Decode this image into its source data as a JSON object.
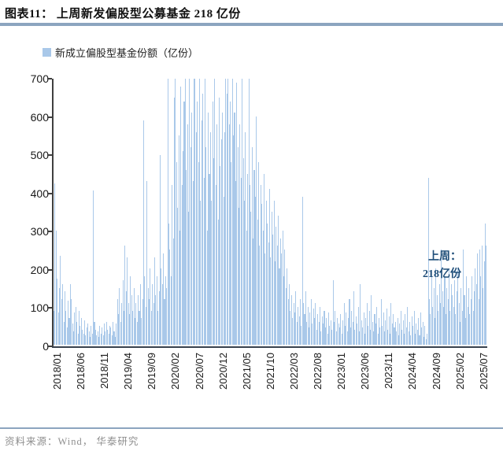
{
  "title": "图表11：  上周新发偏股型公募基金 218 亿份",
  "legend": {
    "label": "新成立偏股型基金份额（亿份）"
  },
  "annotation": {
    "line1": "上周：",
    "line2": "218亿份"
  },
  "footer": {
    "source": "资料来源：Wind， 华泰研究"
  },
  "colors": {
    "bar": "#A9C8E9",
    "rule": "#8CA5BF",
    "annotation": "#1F4E79",
    "axis": "#3f3f3f"
  },
  "chart_data": {
    "type": "bar",
    "title": "上周新发偏股型公募基金 218 亿份",
    "series_name": "新成立偏股型基金份额（亿份）",
    "frequency": "weekly",
    "x_start": "2018/01",
    "x_end": "2025/08",
    "x_tick_labels": [
      "2018/01",
      "2018/06",
      "2018/11",
      "2019/04",
      "2019/09",
      "2020/02",
      "2020/07",
      "2020/12",
      "2021/05",
      "2021/10",
      "2022/03",
      "2022/08",
      "2023/01",
      "2023/06",
      "2023/11",
      "2024/04",
      "2024/09",
      "2025/02",
      "2025/07"
    ],
    "y_ticks": [
      0,
      100,
      200,
      300,
      400,
      500,
      600,
      700
    ],
    "ylim": [
      0,
      700
    ],
    "ylabel": "",
    "grid": false,
    "legend_position": "top-left",
    "last_week_value": 218,
    "values": [
      90,
      425,
      300,
      175,
      85,
      150,
      235,
      120,
      160,
      60,
      140,
      90,
      45,
      115,
      70,
      160,
      120,
      55,
      35,
      85,
      100,
      60,
      30,
      90,
      50,
      70,
      40,
      30,
      65,
      25,
      45,
      55,
      35,
      20,
      50,
      30,
      405,
      60,
      40,
      25,
      35,
      20,
      50,
      30,
      45,
      25,
      55,
      35,
      60,
      40,
      30,
      50,
      45,
      25,
      60,
      35,
      20,
      55,
      120,
      80,
      150,
      60,
      110,
      170,
      90,
      260,
      140,
      230,
      110,
      80,
      180,
      130,
      90,
      150,
      70,
      110,
      60,
      130,
      90,
      160,
      70,
      120,
      590,
      180,
      100,
      430,
      150,
      120,
      200,
      90,
      160,
      110,
      230,
      130,
      180,
      90,
      140,
      500,
      200,
      160,
      240,
      120,
      180,
      150,
      700,
      320,
      250,
      180,
      420,
      280,
      650,
      700,
      480,
      360,
      550,
      300,
      680,
      420,
      510,
      640,
      700,
      460,
      580,
      350,
      700,
      520,
      610,
      430,
      700,
      700,
      560,
      640,
      480,
      700,
      380,
      590,
      660,
      440,
      700,
      520,
      300,
      610,
      450,
      560,
      380,
      640,
      490,
      700,
      420,
      580,
      330,
      650,
      470,
      540,
      610,
      390,
      560,
      700,
      660,
      700,
      580,
      640,
      480,
      700,
      550,
      610,
      430,
      690,
      520,
      360,
      580,
      440,
      700,
      490,
      380,
      560,
      300,
      450,
      700,
      420,
      350,
      520,
      280,
      460,
      390,
      600,
      330,
      480,
      260,
      420,
      370,
      300,
      450,
      240,
      380,
      320,
      270,
      410,
      230,
      350,
      290,
      380,
      220,
      310,
      260,
      340,
      200,
      280,
      240,
      300,
      180,
      250,
      150,
      200,
      120,
      160,
      90,
      130,
      70,
      110,
      85,
      140,
      60,
      100,
      75,
      120,
      50,
      390,
      110,
      80,
      140,
      60,
      100,
      45,
      85,
      120,
      55,
      95,
      70,
      110,
      40,
      80,
      60,
      100,
      35,
      75,
      55,
      90,
      45,
      70,
      30,
      85,
      50,
      65,
      40,
      170,
      60,
      90,
      35,
      70,
      55,
      45,
      80,
      30,
      65,
      110,
      50,
      85,
      35,
      70,
      120,
      45,
      90,
      60,
      140,
      40,
      75,
      55,
      100,
      35,
      160,
      65,
      45,
      85,
      30,
      70,
      110,
      50,
      90,
      40,
      130,
      60,
      35,
      80,
      55,
      100,
      30,
      70,
      45,
      120,
      50,
      85,
      35,
      65,
      95,
      40,
      75,
      30,
      110,
      55,
      80,
      45,
      60,
      35,
      70,
      25,
      55,
      90,
      40,
      65,
      30,
      80,
      45,
      100,
      35,
      60,
      25,
      75,
      50,
      90,
      30,
      55,
      40,
      70,
      25,
      85,
      45,
      60,
      20,
      50,
      15,
      30,
      440,
      120,
      80,
      180,
      100,
      150,
      70,
      200,
      130,
      90,
      160,
      110,
      250,
      140,
      100,
      180,
      80,
      150,
      120,
      200,
      90,
      160,
      130,
      100,
      170,
      80,
      140,
      200,
      110,
      60,
      150,
      90,
      250,
      130,
      70,
      180,
      100,
      150,
      80,
      120,
      180,
      90,
      140,
      200,
      160,
      240,
      120,
      250,
      180,
      260,
      150,
      220,
      320,
      260,
      218
    ]
  }
}
